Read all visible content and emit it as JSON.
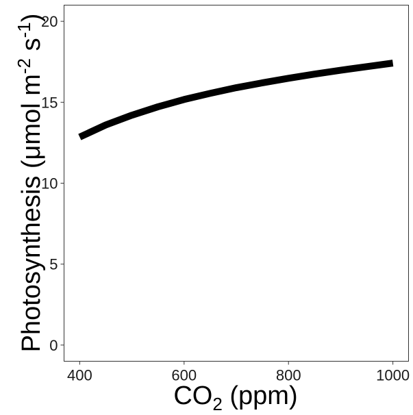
{
  "chart_data": {
    "type": "line",
    "title": "",
    "xlabel": {
      "base": "CO",
      "sub": "2",
      "rest": " (ppm)"
    },
    "ylabel": {
      "part1": "Photosynthesis (μmol m",
      "sup1": "-2",
      "part2": " s",
      "sup2": "-1",
      "part3": ")"
    },
    "xlim": [
      370,
      1030
    ],
    "ylim": [
      -1,
      21
    ],
    "x_ticks": [
      400,
      600,
      800,
      1000
    ],
    "y_ticks": [
      0,
      5,
      10,
      15,
      20
    ],
    "x_tick_labels": [
      "400",
      "600",
      "800",
      "1000"
    ],
    "y_tick_labels": [
      "0",
      "5",
      "10",
      "15",
      "20"
    ],
    "grid": false,
    "legend": "none",
    "line_color": "#000000",
    "series": [
      {
        "x": [
          400,
          450,
          500,
          550,
          600,
          650,
          700,
          750,
          800,
          850,
          900,
          950,
          1000
        ],
        "y": [
          12.85,
          13.6,
          14.2,
          14.72,
          15.17,
          15.55,
          15.9,
          16.2,
          16.48,
          16.74,
          16.98,
          17.2,
          17.42
        ]
      }
    ]
  }
}
